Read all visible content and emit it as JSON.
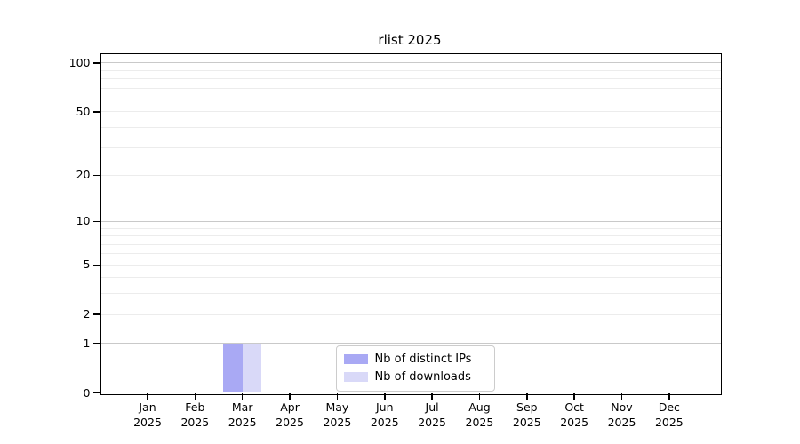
{
  "title": "rlist 2025",
  "colors": {
    "distinct_ips": "#a9a9f4",
    "downloads": "#d9d9f8",
    "grid_major": "#c9c9c9",
    "grid_minor": "#ececec",
    "axis_frame": "#000000",
    "legend_border": "#cccccc",
    "background": "#ffffff"
  },
  "legend": {
    "items": [
      {
        "label": "Nb of distinct IPs",
        "color_key": "distinct_ips"
      },
      {
        "label": "Nb of downloads",
        "color_key": "downloads"
      }
    ]
  },
  "chart_data": {
    "type": "bar",
    "title": "rlist 2025",
    "categories": [
      "Jan 2025",
      "Feb 2025",
      "Mar 2025",
      "Apr 2025",
      "May 2025",
      "Jun 2025",
      "Jul 2025",
      "Aug 2025",
      "Sep 2025",
      "Oct 2025",
      "Nov 2025",
      "Dec 2025"
    ],
    "series": [
      {
        "name": "Nb of distinct IPs",
        "color_key": "distinct_ips",
        "values": [
          0,
          0,
          1,
          0,
          0,
          0,
          0,
          0,
          0,
          0,
          0,
          0
        ]
      },
      {
        "name": "Nb of downloads",
        "color_key": "downloads",
        "values": [
          0,
          0,
          1,
          0,
          0,
          0,
          0,
          0,
          0,
          0,
          0,
          0
        ]
      }
    ],
    "xlabel": "",
    "ylabel": "",
    "yscale": "log1p",
    "ylim": [
      0,
      114
    ],
    "y_ticks": [
      0,
      1,
      2,
      5,
      10,
      20,
      50,
      100
    ],
    "y_major_gridlines": [
      1,
      10,
      100
    ],
    "y_minor_gridlines": [
      2,
      3,
      4,
      5,
      6,
      7,
      8,
      9,
      20,
      30,
      40,
      50,
      60,
      70,
      80,
      90
    ],
    "grid": "horizontal-only",
    "legend_position": "lower center"
  }
}
